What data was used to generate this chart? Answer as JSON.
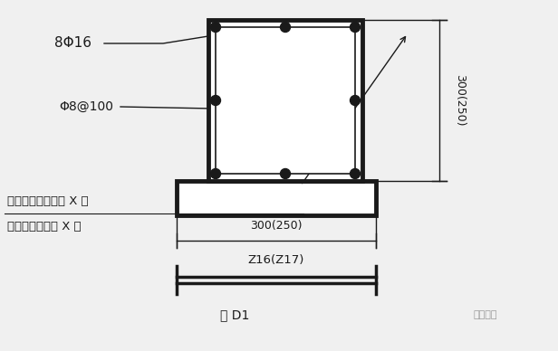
{
  "bg_color": "#f0f0f0",
  "line_color": "#1a1a1a",
  "text_color": "#1a1a1a",
  "fig_width": 6.16,
  "fig_height": 3.88,
  "dpi": 100,
  "label_8phi16": "8Φ16",
  "label_phi8at100": "Φ8@100",
  "label_change": "见设计变更通知单 X 号",
  "label_consult": "或工程洽商记录 X 号",
  "label_width": "300(250)",
  "label_height": "300(250)",
  "label_z16": "Z16(Z17)",
  "label_fig": "图 D1",
  "label_brand": "市政设計"
}
